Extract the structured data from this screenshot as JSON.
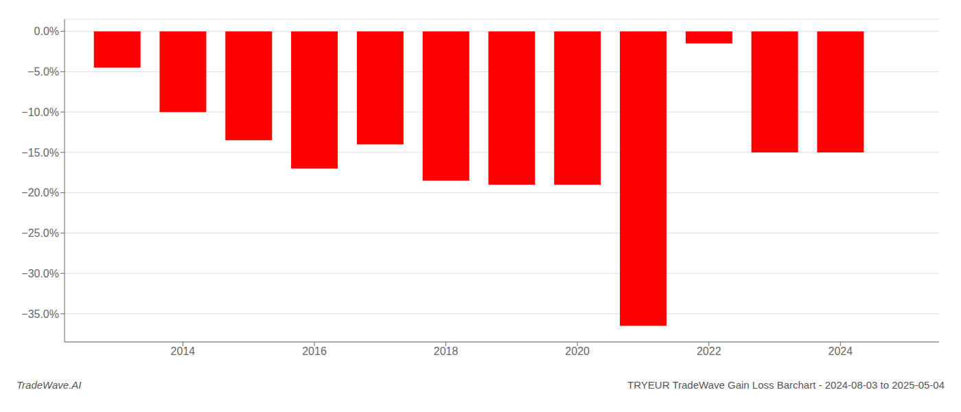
{
  "chart_data": {
    "type": "bar",
    "title": "TRYEUR TradeWave Gain Loss Barchart - 2024-08-03 to 2025-05-04",
    "annotations": [
      "TradeWave.AI"
    ],
    "x": [
      2013,
      2014,
      2015,
      2016,
      2017,
      2018,
      2019,
      2020,
      2021,
      2022,
      2023,
      2024
    ],
    "values": [
      -4.5,
      -10.0,
      -13.5,
      -17.0,
      -14.0,
      -18.5,
      -19.0,
      -19.0,
      -36.5,
      -1.5,
      -15.0,
      -15.0
    ],
    "color": "#ff0000",
    "xlim": [
      2012.2,
      2025.5
    ],
    "xticks": [
      2014,
      2016,
      2018,
      2020,
      2022,
      2024
    ],
    "ylim": [
      -38.5,
      1.5
    ],
    "yticks": [
      {
        "value": 0.0,
        "label": "0.0%"
      },
      {
        "value": -5.0,
        "label": "−5.0%"
      },
      {
        "value": -10.0,
        "label": "−10.0%"
      },
      {
        "value": -15.0,
        "label": "−15.0%"
      },
      {
        "value": -20.0,
        "label": "−20.0%"
      },
      {
        "value": -25.0,
        "label": "−25.0%"
      },
      {
        "value": -30.0,
        "label": "−30.0%"
      },
      {
        "value": -35.0,
        "label": "−35.0%"
      }
    ],
    "grid": true
  }
}
